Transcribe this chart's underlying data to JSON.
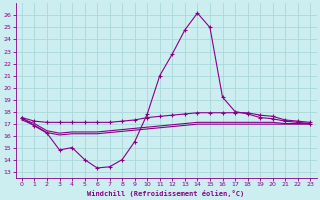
{
  "xlabel": "Windchill (Refroidissement éolien,°C)",
  "xlim": [
    -0.5,
    23.5
  ],
  "ylim": [
    12.5,
    27
  ],
  "yticks": [
    13,
    14,
    15,
    16,
    17,
    18,
    19,
    20,
    21,
    22,
    23,
    24,
    25,
    26
  ],
  "xticks": [
    0,
    1,
    2,
    3,
    4,
    5,
    6,
    7,
    8,
    9,
    10,
    11,
    12,
    13,
    14,
    15,
    16,
    17,
    18,
    19,
    20,
    21,
    22,
    23
  ],
  "bg_color": "#cceef0",
  "grid_color": "#aad8dc",
  "line_color": "#880088",
  "x": [
    0,
    1,
    2,
    3,
    4,
    5,
    6,
    7,
    8,
    9,
    10,
    11,
    12,
    13,
    14,
    15,
    16,
    17,
    18,
    19,
    20,
    21,
    22,
    23
  ],
  "y_main": [
    17.5,
    16.8,
    16.2,
    14.8,
    15.0,
    14.0,
    13.3,
    13.4,
    14.0,
    15.5,
    17.8,
    21.0,
    22.8,
    24.8,
    26.2,
    25.0,
    19.2,
    18.0,
    17.8,
    17.5,
    17.4,
    17.2,
    17.1,
    17.0
  ],
  "y_upper": [
    17.5,
    17.2,
    17.1,
    17.1,
    17.1,
    17.1,
    17.1,
    17.1,
    17.2,
    17.3,
    17.5,
    17.6,
    17.7,
    17.8,
    17.9,
    17.9,
    17.9,
    17.9,
    17.9,
    17.7,
    17.6,
    17.3,
    17.2,
    17.1
  ],
  "y_mid1": [
    17.4,
    17.0,
    16.4,
    16.2,
    16.3,
    16.3,
    16.3,
    16.4,
    16.5,
    16.6,
    16.7,
    16.8,
    16.9,
    17.0,
    17.1,
    17.1,
    17.1,
    17.1,
    17.1,
    17.1,
    17.1,
    17.0,
    17.0,
    17.0
  ],
  "y_mid2": [
    17.3,
    16.85,
    16.25,
    16.05,
    16.15,
    16.15,
    16.15,
    16.25,
    16.35,
    16.45,
    16.55,
    16.65,
    16.75,
    16.85,
    16.95,
    16.95,
    16.95,
    16.95,
    16.95,
    16.95,
    16.95,
    16.95,
    16.95,
    16.95
  ]
}
